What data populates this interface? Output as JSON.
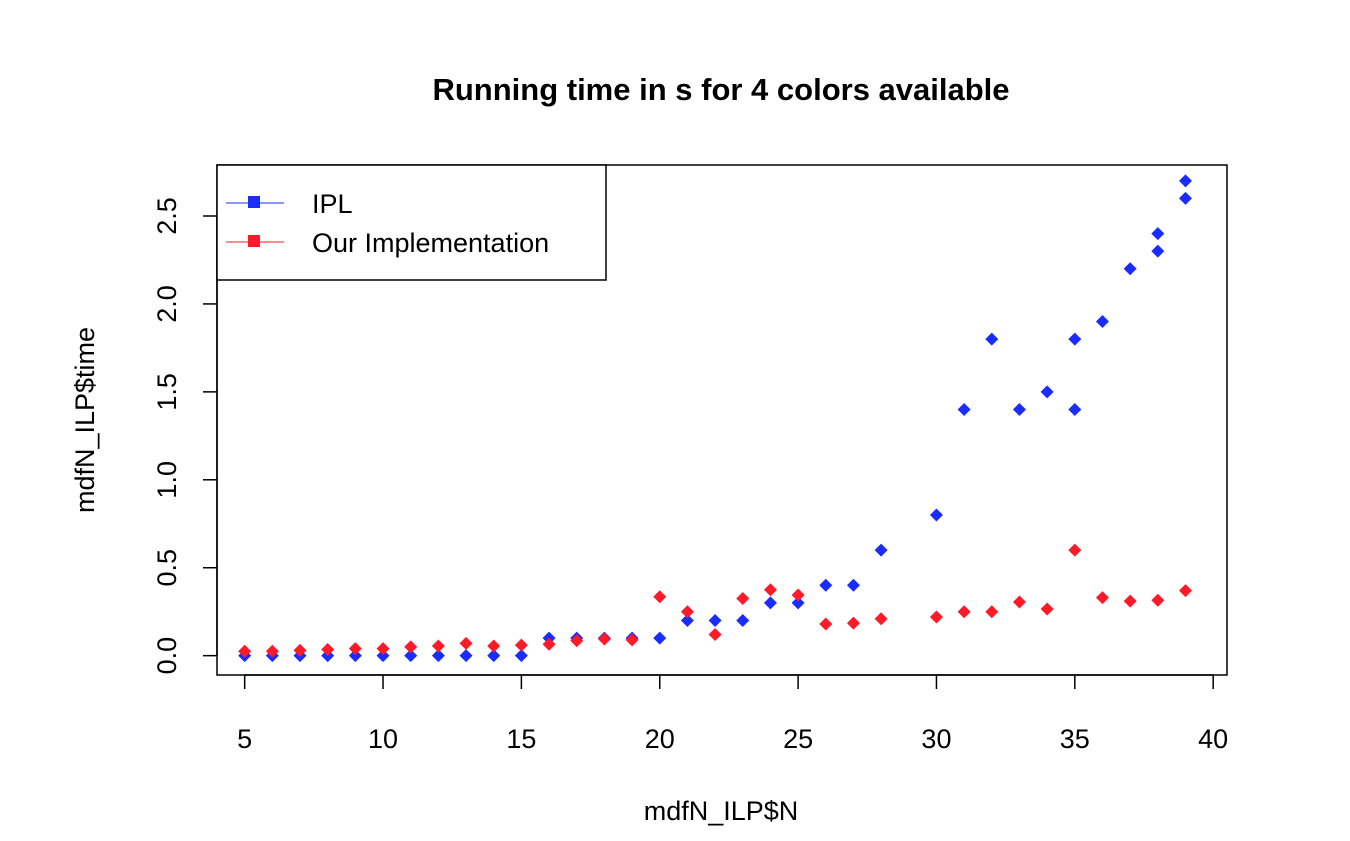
{
  "chart_data": {
    "type": "scatter",
    "title": "Running time in s for 4 colors available",
    "xlabel": "mdfN_ILP$N",
    "ylabel": "mdfN_ILP$time",
    "xlim": [
      4,
      40.5
    ],
    "ylim": [
      -0.11,
      2.79
    ],
    "x_ticks": [
      5,
      10,
      15,
      20,
      25,
      30,
      35,
      40
    ],
    "y_ticks": [
      0.0,
      0.5,
      1.0,
      1.5,
      2.0,
      2.5
    ],
    "x_tick_labels": [
      "5",
      "10",
      "15",
      "20",
      "25",
      "30",
      "35",
      "40"
    ],
    "y_tick_labels": [
      "0.0",
      "0.5",
      "1.0",
      "1.5",
      "2.0",
      "2.5"
    ],
    "legend_position": "top-left",
    "grid": false,
    "series": [
      {
        "name": "IPL",
        "color": "#1a2cff",
        "marker": "diamond",
        "x": [
          5,
          6,
          7,
          8,
          9,
          10,
          11,
          12,
          13,
          14,
          15,
          16,
          17,
          18,
          19,
          20,
          21,
          22,
          23,
          24,
          25,
          26,
          27,
          28,
          30,
          31,
          32,
          33,
          34,
          35,
          35,
          36,
          37,
          38,
          38,
          39,
          39
        ],
        "y": [
          0,
          0,
          0,
          0,
          0,
          0,
          0,
          0,
          0,
          0,
          0,
          0.1,
          0.1,
          0.1,
          0.1,
          0.1,
          0.2,
          0.2,
          0.2,
          0.3,
          0.3,
          0.4,
          0.4,
          0.6,
          0.8,
          1.4,
          1.8,
          1.4,
          1.5,
          1.4,
          1.8,
          1.9,
          2.2,
          2.3,
          2.4,
          2.6,
          2.7
        ]
      },
      {
        "name": "Our Implementation",
        "color": "#ff1a2a",
        "marker": "diamond",
        "x": [
          5,
          6,
          7,
          8,
          9,
          10,
          11,
          12,
          13,
          14,
          15,
          16,
          17,
          18,
          19,
          20,
          21,
          22,
          23,
          24,
          25,
          26,
          27,
          28,
          30,
          31,
          32,
          33,
          34,
          35,
          36,
          37,
          38,
          39
        ],
        "y": [
          0.025,
          0.025,
          0.03,
          0.035,
          0.04,
          0.04,
          0.05,
          0.055,
          0.07,
          0.055,
          0.06,
          0.065,
          0.085,
          0.095,
          0.09,
          0.335,
          0.25,
          0.12,
          0.325,
          0.375,
          0.345,
          0.18,
          0.185,
          0.21,
          0.22,
          0.25,
          0.25,
          0.305,
          0.265,
          0.6,
          0.33,
          0.31,
          0.315,
          0.37
        ]
      }
    ]
  }
}
